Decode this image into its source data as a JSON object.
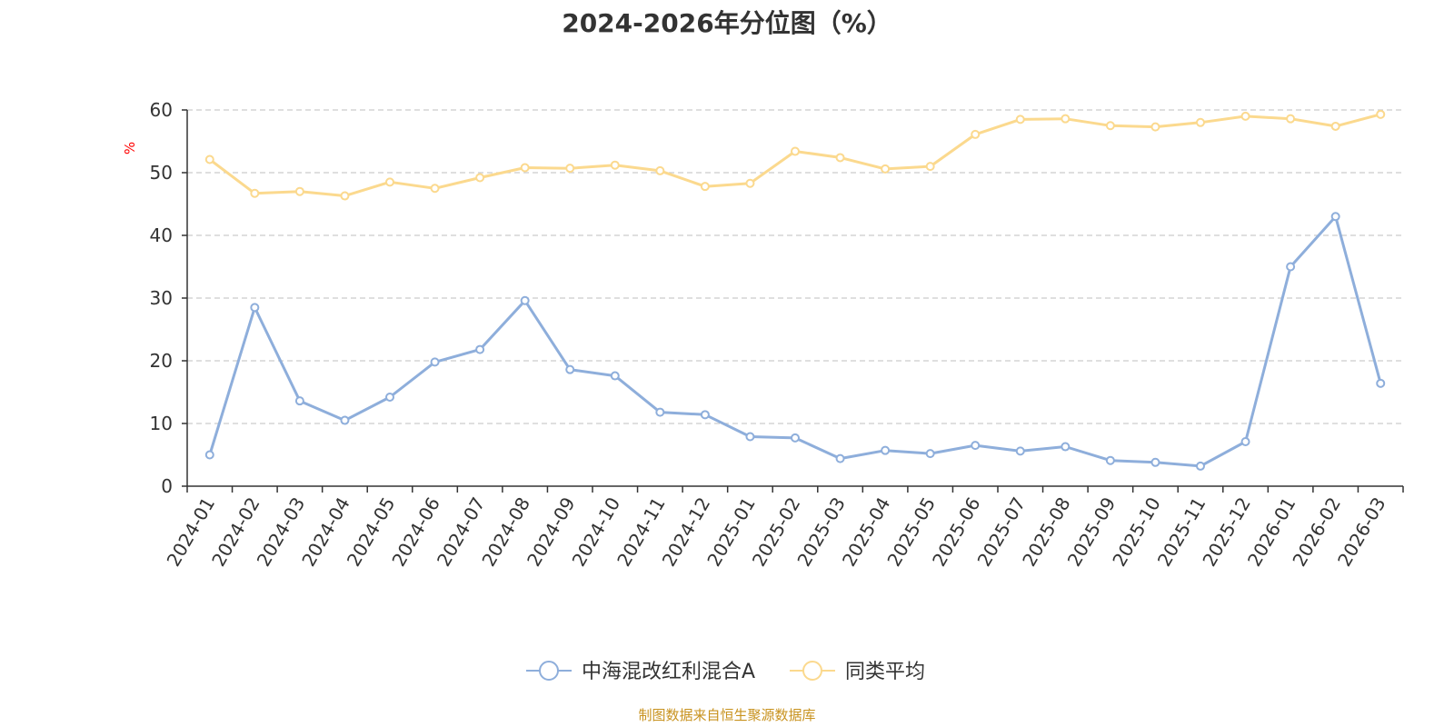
{
  "chart_data": {
    "type": "line",
    "title": "2024-2026年分位图（%）",
    "ylabel": "%",
    "ylim": [
      0,
      60
    ],
    "yticks": [
      0,
      10,
      20,
      30,
      40,
      50,
      60
    ],
    "grid": true,
    "legend_position": "bottom-center",
    "categories": [
      "2024-01",
      "2024-02",
      "2024-03",
      "2024-04",
      "2024-05",
      "2024-06",
      "2024-07",
      "2024-08",
      "2024-09",
      "2024-10",
      "2024-11",
      "2024-12",
      "2025-01",
      "2025-02",
      "2025-03",
      "2025-04",
      "2025-05",
      "2025-06",
      "2025-07",
      "2025-08",
      "2025-09",
      "2025-10",
      "2025-11",
      "2025-12",
      "2026-01",
      "2026-02",
      "2026-03"
    ],
    "series": [
      {
        "name": "中海混改红利混合A",
        "color": "#8eaedb",
        "values": [
          5.0,
          28.5,
          13.6,
          10.5,
          14.2,
          19.8,
          21.8,
          29.6,
          18.6,
          17.6,
          11.8,
          11.4,
          7.9,
          7.7,
          4.4,
          5.7,
          5.2,
          6.5,
          5.6,
          6.3,
          4.1,
          3.8,
          3.2,
          7.1,
          35.0,
          43.0,
          16.4
        ]
      },
      {
        "name": "同类平均",
        "color": "#fbd98e",
        "values": [
          52.1,
          46.7,
          47.0,
          46.3,
          48.5,
          47.5,
          49.2,
          50.8,
          50.7,
          51.2,
          50.3,
          47.8,
          48.3,
          53.4,
          52.4,
          50.6,
          51.0,
          56.1,
          58.5,
          58.6,
          57.5,
          57.3,
          58.0,
          59.0,
          58.6,
          57.4,
          59.3
        ]
      }
    ],
    "source": "制图数据来自恒生聚源数据库"
  }
}
